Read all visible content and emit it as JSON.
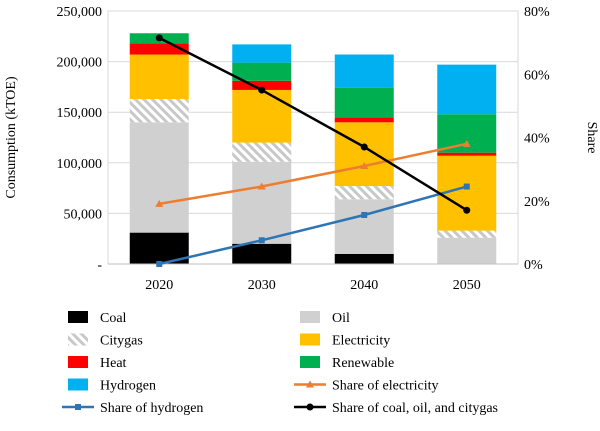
{
  "chart_data": {
    "type": "bar",
    "subtype": "stacked-bar-with-lines",
    "categories": [
      "2020",
      "2030",
      "2040",
      "2050"
    ],
    "ylabel": "Consumption  (kTOE)",
    "y2label": "Share",
    "ylim": [
      0,
      250000
    ],
    "y2lim": [
      0,
      0.8
    ],
    "yticks": [
      0,
      50000,
      100000,
      150000,
      200000,
      250000
    ],
    "yticklabels": [
      "-",
      "50,000",
      "100,000",
      "150,000",
      "200,000",
      "250,000"
    ],
    "y2ticks": [
      0,
      0.2,
      0.4,
      0.6,
      0.8
    ],
    "y2ticklabels": [
      "0%",
      "20%",
      "40%",
      "60%",
      "80%"
    ],
    "grid": "horizontal",
    "legend_position": "bottom",
    "bar_series": [
      {
        "name": "Coal",
        "color": "#000000",
        "pattern": "solid",
        "values": [
          31000,
          20000,
          10000,
          0
        ]
      },
      {
        "name": "Oil",
        "color": "#d0d0d0",
        "pattern": "solid",
        "values": [
          109000,
          81000,
          54000,
          26000
        ]
      },
      {
        "name": "Citygas",
        "color": "#d9d9d9",
        "pattern": "hatch",
        "values": [
          23000,
          19000,
          13000,
          7000
        ]
      },
      {
        "name": "Electricity",
        "color": "#ffc000",
        "pattern": "solid",
        "values": [
          44000,
          52000,
          63000,
          74000
        ]
      },
      {
        "name": "Heat",
        "color": "#ff0000",
        "pattern": "solid",
        "values": [
          11000,
          9000,
          5000,
          3000
        ]
      },
      {
        "name": "Renewable",
        "color": "#00b050",
        "pattern": "solid",
        "values": [
          10000,
          18000,
          29000,
          38000
        ]
      },
      {
        "name": "Hydrogen",
        "color": "#00b0f0",
        "pattern": "solid",
        "values": [
          0,
          18000,
          33000,
          49000
        ]
      }
    ],
    "line_series": [
      {
        "name": "Share of electricity",
        "color": "#ed7d31",
        "marker": "triangle",
        "values": [
          0.19,
          0.245,
          0.31,
          0.38
        ]
      },
      {
        "name": "Share of hydrogen",
        "color": "#2e75b6",
        "marker": "square",
        "values": [
          0.0,
          0.075,
          0.155,
          0.245
        ]
      },
      {
        "name": "Share of coal, oil, and citygas",
        "color": "#000000",
        "marker": "circle",
        "values": [
          0.715,
          0.55,
          0.37,
          0.17
        ]
      }
    ]
  }
}
